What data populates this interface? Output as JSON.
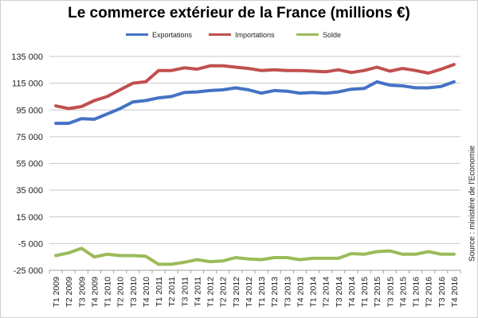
{
  "chart_data": {
    "type": "line",
    "title": "Le commerce extérieur de la France (millions €)",
    "source": "Source : ministère de l'Economie",
    "xlabel": "",
    "ylabel": "",
    "ylim": [
      -25000,
      135000
    ],
    "yticks": [
      135000,
      115000,
      95000,
      75000,
      55000,
      35000,
      15000,
      -5000,
      -25000
    ],
    "ytick_labels": [
      "135 000",
      "115 000",
      "95 000",
      "75 000",
      "55 000",
      "35 000",
      "15 000",
      "-5 000",
      "-25 000"
    ],
    "grid": "horizontal",
    "legend_position": "top",
    "categories": [
      "T1 2009",
      "T2 2009",
      "T3 2009",
      "T4 2009",
      "T1 2010",
      "T2 2010",
      "T3 2010",
      "T4 2010",
      "T1 2011",
      "T2 2011",
      "T3 2011",
      "T4 2011",
      "T1 2012",
      "T2 2012",
      "T3 2012",
      "T4 2012",
      "T1 2013",
      "T2 2013",
      "T3 2013",
      "T4 2013",
      "T1 2014",
      "T2 2014",
      "T3 2014",
      "T4 2014",
      "T1 2015",
      "T2 2015",
      "T3 2015",
      "T4 2015",
      "T1 2016",
      "T2 2016",
      "T3 2016",
      "T4 2016"
    ],
    "series": [
      {
        "name": "Exportations",
        "color": "#4472c4",
        "values": [
          85000,
          85000,
          88500,
          88000,
          92000,
          96000,
          101000,
          102000,
          104000,
          105000,
          108000,
          108500,
          109500,
          110000,
          111500,
          110000,
          107500,
          109500,
          109000,
          107500,
          108000,
          107500,
          108500,
          110500,
          111000,
          116000,
          113500,
          113000,
          111500,
          111500,
          112500,
          116000
        ]
      },
      {
        "name": "Importations",
        "color": "#c0504d",
        "values": [
          98000,
          96000,
          97500,
          102000,
          105000,
          110000,
          115000,
          116000,
          124500,
          124500,
          126500,
          125500,
          128000,
          128000,
          127000,
          126000,
          124500,
          125000,
          124500,
          124500,
          124000,
          123500,
          125000,
          123000,
          124500,
          127000,
          124000,
          126000,
          124500,
          122500,
          125500,
          129000
        ]
      },
      {
        "name": "Solde",
        "color": "#9bbb59",
        "values": [
          -14000,
          -12000,
          -8500,
          -15000,
          -13000,
          -14000,
          -14000,
          -14500,
          -20500,
          -20500,
          -19000,
          -17000,
          -18500,
          -18000,
          -15500,
          -16500,
          -17000,
          -15500,
          -15500,
          -17000,
          -16000,
          -16000,
          -16000,
          -12500,
          -13000,
          -11000,
          -10500,
          -13000,
          -13000,
          -11000,
          -13000,
          -13000
        ]
      }
    ]
  }
}
